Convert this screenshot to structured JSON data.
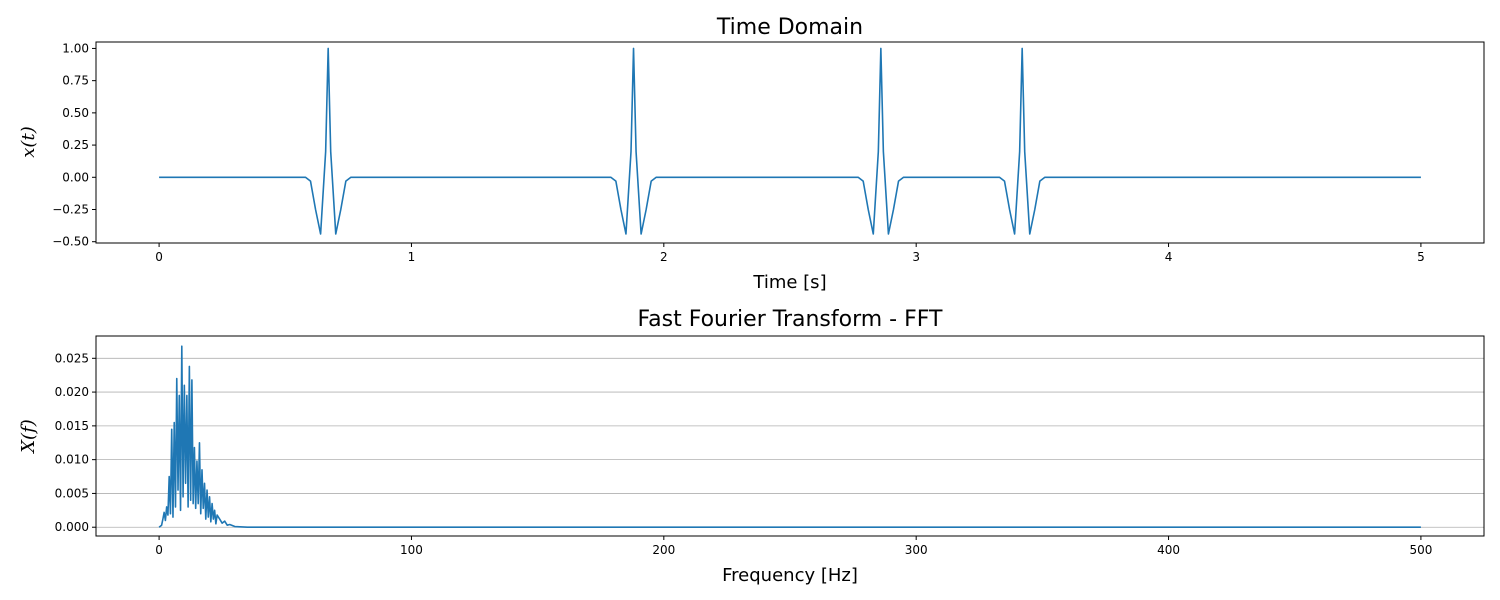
{
  "chart_data": [
    {
      "type": "line",
      "title": "Time Domain",
      "xlabel": "Time [s]",
      "ylabel": "x(t)",
      "xlim": [
        -0.25,
        5.25
      ],
      "ylim": [
        -0.51,
        1.05
      ],
      "xticks": [
        "0",
        "1",
        "2",
        "3",
        "4",
        "5"
      ],
      "yticks": [
        "1.00",
        "0.75",
        "0.50",
        "0.25",
        "0.00",
        "−0.25",
        "−0.50"
      ],
      "grid": false,
      "series": [
        {
          "color": "#1f77b4",
          "x": [
            0,
            0.58,
            0.6,
            0.62,
            0.64,
            0.66,
            0.67,
            0.68,
            0.7,
            0.72,
            0.74,
            0.76,
            1.79,
            1.81,
            1.83,
            1.85,
            1.87,
            1.88,
            1.89,
            1.91,
            1.93,
            1.95,
            1.97,
            2.77,
            2.79,
            2.81,
            2.83,
            2.85,
            2.86,
            2.87,
            2.89,
            2.91,
            2.93,
            2.95,
            3.33,
            3.35,
            3.37,
            3.39,
            3.41,
            3.42,
            3.43,
            3.45,
            3.47,
            3.49,
            3.51,
            5
          ],
          "y": [
            0,
            0,
            -0.03,
            -0.25,
            -0.44,
            0.2,
            1.0,
            0.2,
            -0.44,
            -0.25,
            -0.03,
            0,
            0,
            -0.03,
            -0.25,
            -0.44,
            0.2,
            1.0,
            0.2,
            -0.44,
            -0.25,
            -0.03,
            0,
            0,
            -0.03,
            -0.25,
            -0.44,
            0.2,
            1.0,
            0.2,
            -0.44,
            -0.25,
            -0.03,
            0,
            0,
            -0.03,
            -0.25,
            -0.44,
            0.2,
            1.0,
            0.2,
            -0.44,
            -0.25,
            -0.03,
            0,
            0
          ]
        }
      ]
    },
    {
      "type": "line",
      "title": "Fast Fourier Transform - FFT",
      "xlabel": "Frequency [Hz]",
      "ylabel": "X(f)",
      "xlim": [
        -25,
        525
      ],
      "ylim": [
        -0.0013,
        0.0283
      ],
      "xticks": [
        "0",
        "100",
        "200",
        "300",
        "400",
        "500"
      ],
      "yticks": [
        "0.025",
        "0.020",
        "0.015",
        "0.010",
        "0.005",
        "0.000"
      ],
      "grid": true,
      "series": [
        {
          "color": "#1f77b4",
          "x": [
            0,
            1,
            1.5,
            2,
            2.5,
            3,
            3.5,
            4,
            4.5,
            5,
            5.5,
            6,
            6.5,
            7,
            7.5,
            8,
            8.5,
            9,
            9.5,
            10,
            10.5,
            11,
            11.5,
            12,
            12.5,
            13,
            13.5,
            14,
            14.5,
            15,
            15.5,
            16,
            16.5,
            17,
            17.5,
            18,
            18.5,
            19,
            19.5,
            20,
            20.5,
            21,
            21.5,
            22,
            22.5,
            23,
            24,
            25,
            26,
            27,
            28,
            30,
            35,
            500
          ],
          "y": [
            0,
            0.0003,
            0.0012,
            0.0022,
            0.001,
            0.003,
            0.0018,
            0.0075,
            0.002,
            0.0145,
            0.0015,
            0.0155,
            0.003,
            0.022,
            0.0055,
            0.0195,
            0.0025,
            0.0268,
            0.0045,
            0.021,
            0.0065,
            0.0195,
            0.003,
            0.0238,
            0.004,
            0.0218,
            0.0035,
            0.0118,
            0.0028,
            0.0098,
            0.0035,
            0.0125,
            0.002,
            0.0085,
            0.0028,
            0.0065,
            0.0012,
            0.0055,
            0.0015,
            0.0045,
            0.0008,
            0.0035,
            0.0012,
            0.0025,
            0.0005,
            0.0018,
            0.0012,
            0.0006,
            0.0009,
            0.0003,
            0.0004,
            0.0001,
            0,
            0
          ]
        }
      ]
    }
  ]
}
